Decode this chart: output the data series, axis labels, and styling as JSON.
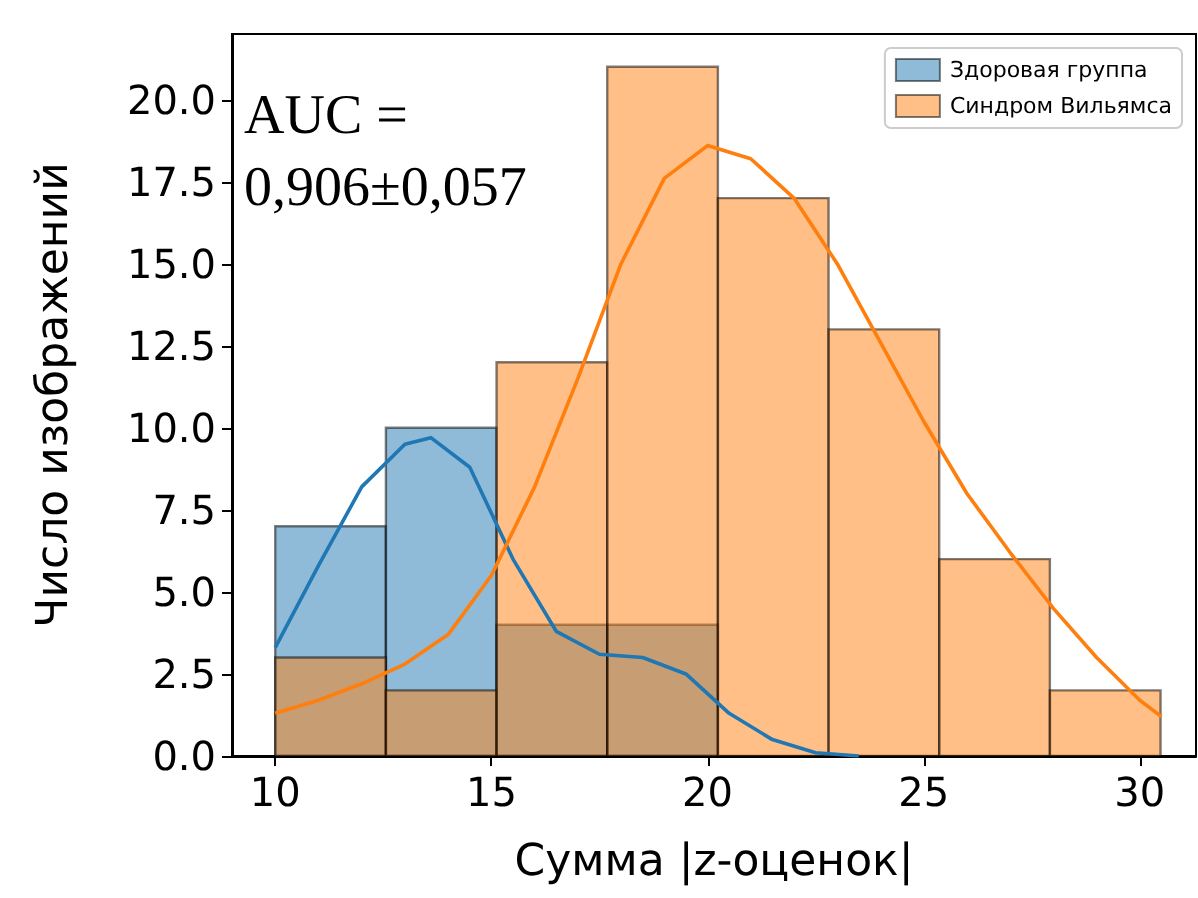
{
  "chart_data": {
    "type": "histogram",
    "xlabel": "Сумма |z-оценок|",
    "ylabel": "Число изображений",
    "bins": [
      10,
      12.56,
      15.12,
      17.68,
      20.24,
      22.8,
      25.36,
      27.92,
      30.48
    ],
    "series": [
      {
        "name": "Здоровая группа",
        "color": "#1f77b4",
        "values": [
          7,
          10,
          4,
          4,
          0,
          0,
          0,
          0
        ]
      },
      {
        "name": "Синдром Вильямса",
        "color": "#ff7f0e",
        "values": [
          3,
          2,
          12,
          21,
          17,
          13,
          6,
          2
        ]
      },
      {
        "type": "line",
        "color": "#1f77b4",
        "x": [
          10,
          11,
          12,
          13,
          13.6,
          14.5,
          15.5,
          16.5,
          17.5,
          18.5,
          19.5,
          20.5,
          21.5,
          22.5,
          23.5
        ],
        "values": [
          3.3,
          5.8,
          8.2,
          9.5,
          9.7,
          8.8,
          6,
          3.8,
          3.1,
          3,
          2.5,
          1.3,
          0.5,
          0.1,
          0
        ]
      },
      {
        "type": "line",
        "color": "#ff7f0e",
        "x": [
          10,
          11,
          12,
          13,
          14,
          15,
          16,
          17,
          18,
          19,
          20,
          21,
          22,
          23,
          24,
          25,
          26,
          27,
          28,
          29,
          30,
          30.5
        ],
        "values": [
          1.3,
          1.7,
          2.2,
          2.8,
          3.7,
          5.5,
          8.2,
          11.5,
          15,
          17.6,
          18.6,
          18.2,
          17,
          15,
          12.6,
          10.2,
          8,
          6.2,
          4.5,
          3,
          1.7,
          1.2
        ]
      }
    ],
    "xlim": [
      9,
      31.3
    ],
    "xticks": [
      10,
      15,
      20,
      25,
      30
    ],
    "ylim": [
      0,
      22
    ],
    "yticks": [
      {
        "value": 0,
        "label": "0.0"
      },
      {
        "value": 2.5,
        "label": "2.5"
      },
      {
        "value": 5,
        "label": "5.0"
      },
      {
        "value": 7.5,
        "label": "7.5"
      },
      {
        "value": 10,
        "label": "10.0"
      },
      {
        "value": 12.5,
        "label": "12.5"
      },
      {
        "value": 15,
        "label": "15.0"
      },
      {
        "value": 17.5,
        "label": "17.5"
      },
      {
        "value": 20,
        "label": "20.0"
      }
    ],
    "annotations": [
      "AUC = 0,906±0,057"
    ],
    "legend": "top right",
    "grid": false
  }
}
